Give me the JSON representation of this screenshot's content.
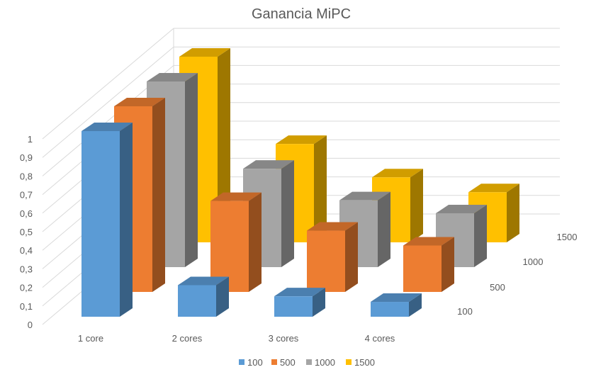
{
  "chart_data": {
    "type": "bar",
    "subtype": "3d-column",
    "title": "Ganancia MiPC",
    "categories": [
      "1 core",
      "2 cores",
      "3 cores",
      "4 cores"
    ],
    "series": [
      {
        "name": "100",
        "values": [
          1.0,
          0.17,
          0.11,
          0.08
        ],
        "color": "#5B9BD5"
      },
      {
        "name": "500",
        "values": [
          1.0,
          0.49,
          0.33,
          0.25
        ],
        "color": "#ED7D31"
      },
      {
        "name": "1000",
        "values": [
          1.0,
          0.53,
          0.36,
          0.29
        ],
        "color": "#A5A5A5"
      },
      {
        "name": "1500",
        "values": [
          1.0,
          0.53,
          0.35,
          0.27
        ],
        "color": "#FFC000"
      }
    ],
    "ylim": [
      0,
      1
    ],
    "yticks": [
      "0",
      "0,1",
      "0,2",
      "0,3",
      "0,4",
      "0,5",
      "0,6",
      "0,7",
      "0,8",
      "0,9",
      "1"
    ],
    "depth_labels": [
      "100",
      "500",
      "1000",
      "1500"
    ],
    "legend": "bottom",
    "grid": true
  }
}
